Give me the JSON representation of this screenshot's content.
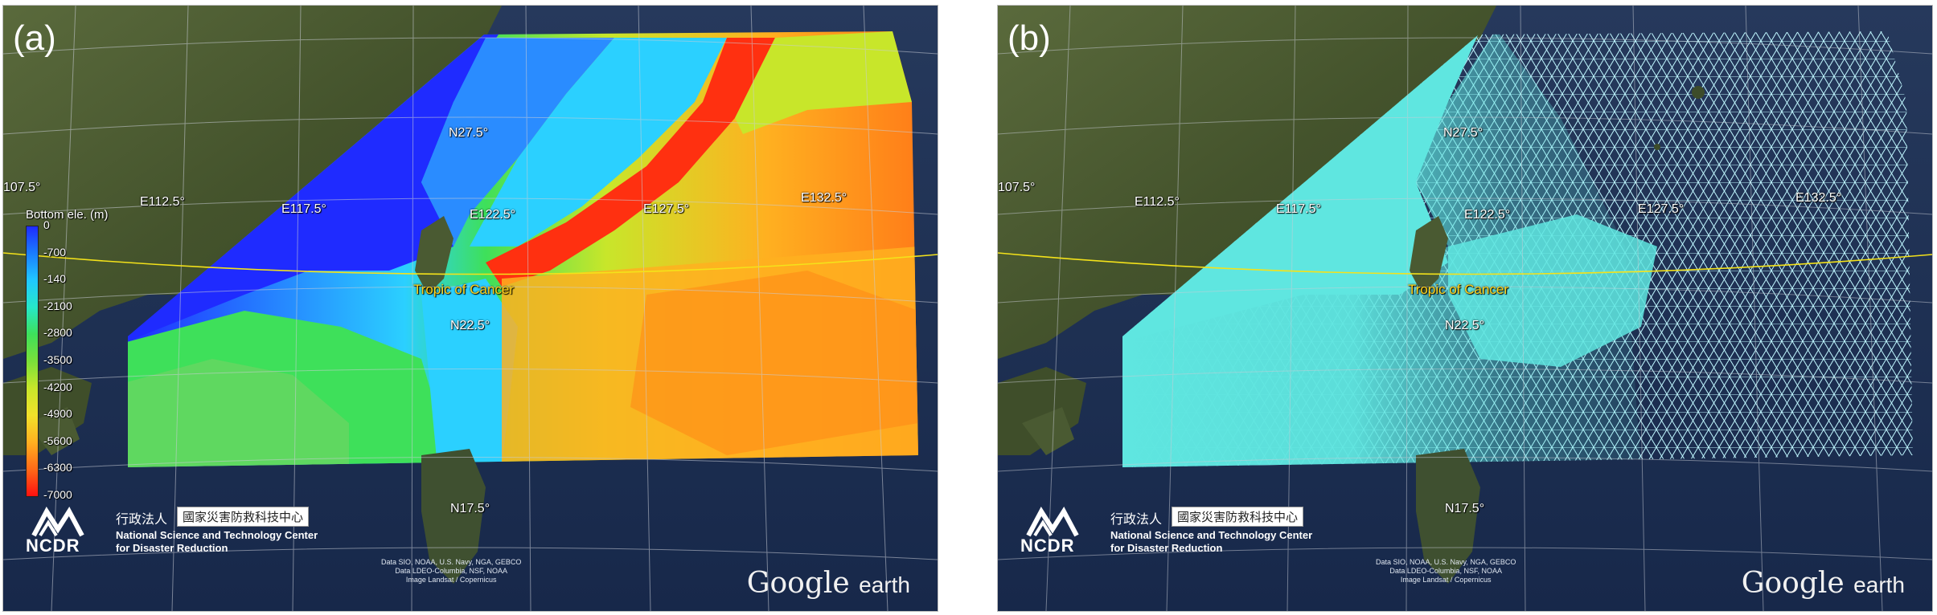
{
  "panels": [
    {
      "letter": "(a)",
      "coords": {
        "lon_partial": "107.5°",
        "e112": "E112.5°",
        "e117": "E117.5°",
        "e122": "E122.5°",
        "e127": "E127.5°",
        "e132": "E132.5°",
        "n27": "N27.5°",
        "n22": "N22.5°",
        "n17": "N17.5°"
      },
      "tropic": "Tropic of Cancer",
      "legend": {
        "title": "Bottom ele. (m)",
        "ticks": [
          "0",
          "-700",
          "-140",
          "-2100",
          "-2800",
          "-3500",
          "-4200",
          "-4900",
          "-5600",
          "-6300",
          "-7000"
        ],
        "colors": [
          "#1f2bff",
          "#1a7dff",
          "#20c8ff",
          "#26e8c8",
          "#3ee05a",
          "#7ae03a",
          "#c8e62a",
          "#f2e22a",
          "#ffb020",
          "#ff6a18",
          "#ff1010"
        ]
      },
      "ncdr": {
        "logo": "NCDR",
        "cn_label": "行政法人",
        "cn_name": "國家災害防救科技中心",
        "en_line1": "National Science and Technology Center",
        "en_line2": "for Disaster Reduction"
      },
      "attribution": [
        "Data SIO, NOAA, U.S. Navy, NGA, GEBCO",
        "Data LDEO-Columbia, NSF, NOAA",
        "Image Landsat / Copernicus"
      ],
      "google_brand": "Google",
      "google_product": "earth"
    },
    {
      "letter": "(b)",
      "coords": {
        "lon_partial": "107.5°",
        "e112": "E112.5°",
        "e117": "E117.5°",
        "e122": "E122.5°",
        "e127": "E127.5°",
        "e132": "E132.5°",
        "n27": "N27.5°",
        "n22": "N22.5°",
        "n17": "N17.5°"
      },
      "tropic": "Tropic of Cancer",
      "ncdr": {
        "logo": "NCDR",
        "cn_label": "行政法人",
        "cn_name": "國家災害防救科技中心",
        "en_line1": "National Science and Technology Center",
        "en_line2": "for Disaster Reduction"
      },
      "attribution": [
        "Data SIO, NOAA, U.S. Navy, NGA, GEBCO",
        "Data LDEO-Columbia, NSF, NOAA",
        "Image Landsat / Copernicus"
      ],
      "google_brand": "Google",
      "google_product": "earth"
    }
  ],
  "colors": {
    "land": "#4a5a32",
    "ocean": "#1d2f55",
    "mesh_fill": "#5fe6e0",
    "mesh_line": "#bff7ff",
    "tropic_line": "#f4e21a",
    "grid": "#c9cdd6"
  }
}
